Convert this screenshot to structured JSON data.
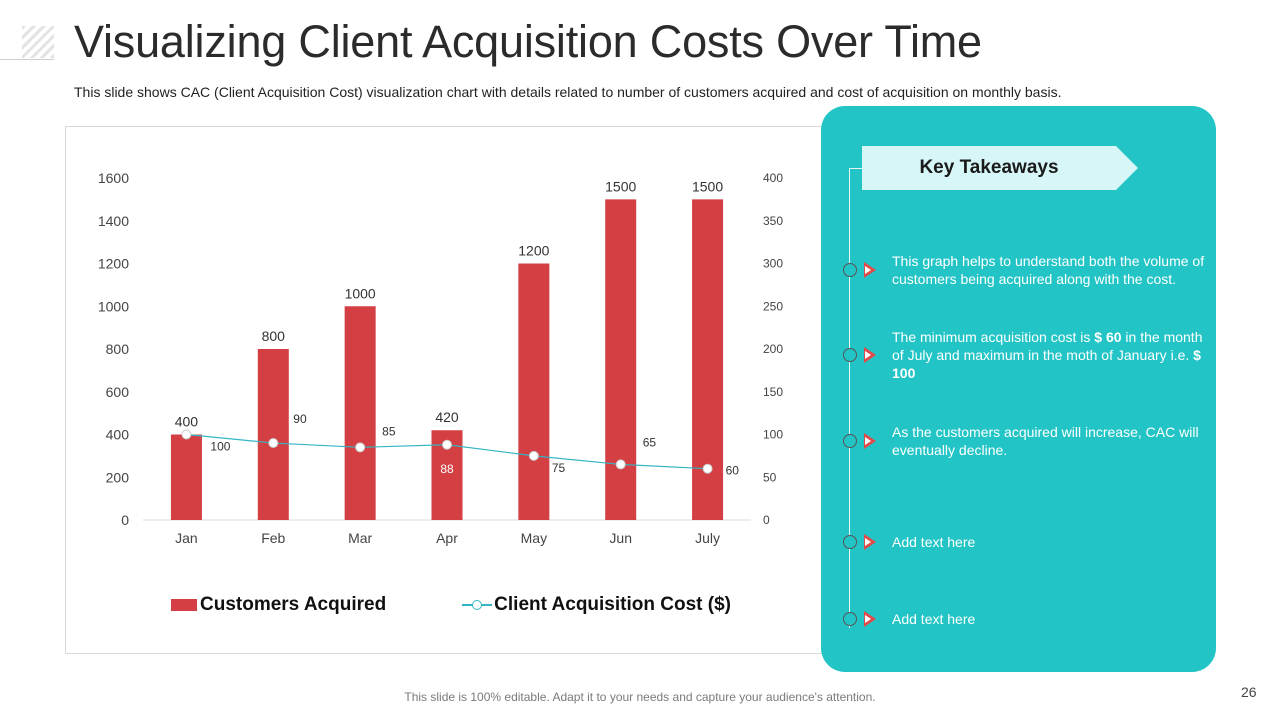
{
  "slide": {
    "title": "Visualizing Client Acquisition Costs Over Time",
    "subtitle": "This slide shows CAC (Client Acquisition Cost) visualization chart with details related to number of customers acquired and cost of acquisition on monthly basis.",
    "footer": "This slide is 100% editable. Adapt it to your needs and capture your audience's attention.",
    "page_number": "26"
  },
  "colors": {
    "bar": "#d33f43",
    "line": "#33b6c4",
    "panel": "#22c4c6",
    "banner": "#d6f6f7",
    "arrow": "#e24a4a"
  },
  "chart_data": {
    "type": "bar",
    "categories": [
      "Jan",
      "Feb",
      "Mar",
      "Apr",
      "May",
      "Jun",
      "July"
    ],
    "series": [
      {
        "name": "Customers Acquired",
        "type": "bar",
        "axis": "left",
        "values": [
          400,
          800,
          1000,
          420,
          1200,
          1500,
          1500
        ]
      },
      {
        "name": "Client Acquisition Cost ($)",
        "type": "line",
        "axis": "right",
        "values": [
          100,
          90,
          85,
          88,
          75,
          65,
          60
        ]
      }
    ],
    "y_left": {
      "range": [
        0,
        1600
      ],
      "ticks": [
        "0",
        "200",
        "400",
        "600",
        "800",
        "1000",
        "1200",
        "1400",
        "1600"
      ]
    },
    "y_right": {
      "range": [
        0,
        400
      ],
      "ticks": [
        "0",
        "50",
        "100",
        "150",
        "200",
        "250",
        "300",
        "350",
        "400"
      ]
    },
    "legend_position": "bottom",
    "grid": false
  },
  "takeaways": {
    "title": "Key Takeaways",
    "items": [
      {
        "text": "This graph helps to understand both the volume of customers being acquired along with the cost."
      },
      {
        "text_before": "The minimum acquisition cost is ",
        "bold1": "$ 60",
        "text_middle": " in the month of July and maximum in the moth of January i.e. ",
        "bold2": "$ 100"
      },
      {
        "text": "As the customers acquired will increase, CAC will eventually decline."
      },
      {
        "text": "Add text here"
      },
      {
        "text": "Add text here"
      }
    ]
  }
}
